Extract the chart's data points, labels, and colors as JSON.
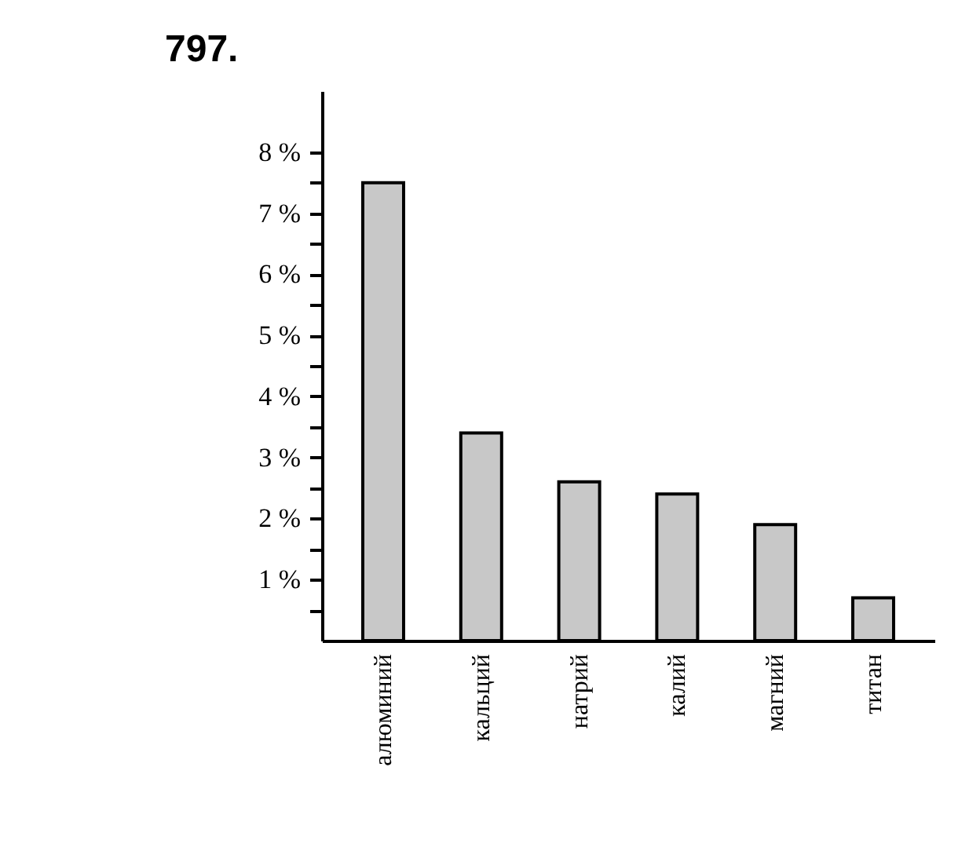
{
  "chart_data": {
    "type": "bar",
    "title": "797.",
    "categories": [
      "алюминий",
      "кальций",
      "натрий",
      "калий",
      "магний",
      "титан"
    ],
    "values": [
      7.5,
      3.4,
      2.6,
      2.4,
      1.9,
      0.7
    ],
    "color": "#c8c8c8",
    "ylim": [
      0,
      9
    ],
    "yticks": [
      {
        "value": 0.5,
        "label": null
      },
      {
        "value": 1,
        "label": "1 %"
      },
      {
        "value": 1.5,
        "label": null
      },
      {
        "value": 2,
        "label": "2 %"
      },
      {
        "value": 2.5,
        "label": null
      },
      {
        "value": 3,
        "label": "3 %"
      },
      {
        "value": 3.5,
        "label": null
      },
      {
        "value": 4,
        "label": "4 %"
      },
      {
        "value": 4.5,
        "label": null
      },
      {
        "value": 5,
        "label": "5 %"
      },
      {
        "value": 5.5,
        "label": null
      },
      {
        "value": 6,
        "label": "6 %"
      },
      {
        "value": 6.5,
        "label": null
      },
      {
        "value": 7,
        "label": "7 %"
      },
      {
        "value": 7.5,
        "label": null
      },
      {
        "value": 8,
        "label": "8 %"
      }
    ],
    "grid": false
  }
}
